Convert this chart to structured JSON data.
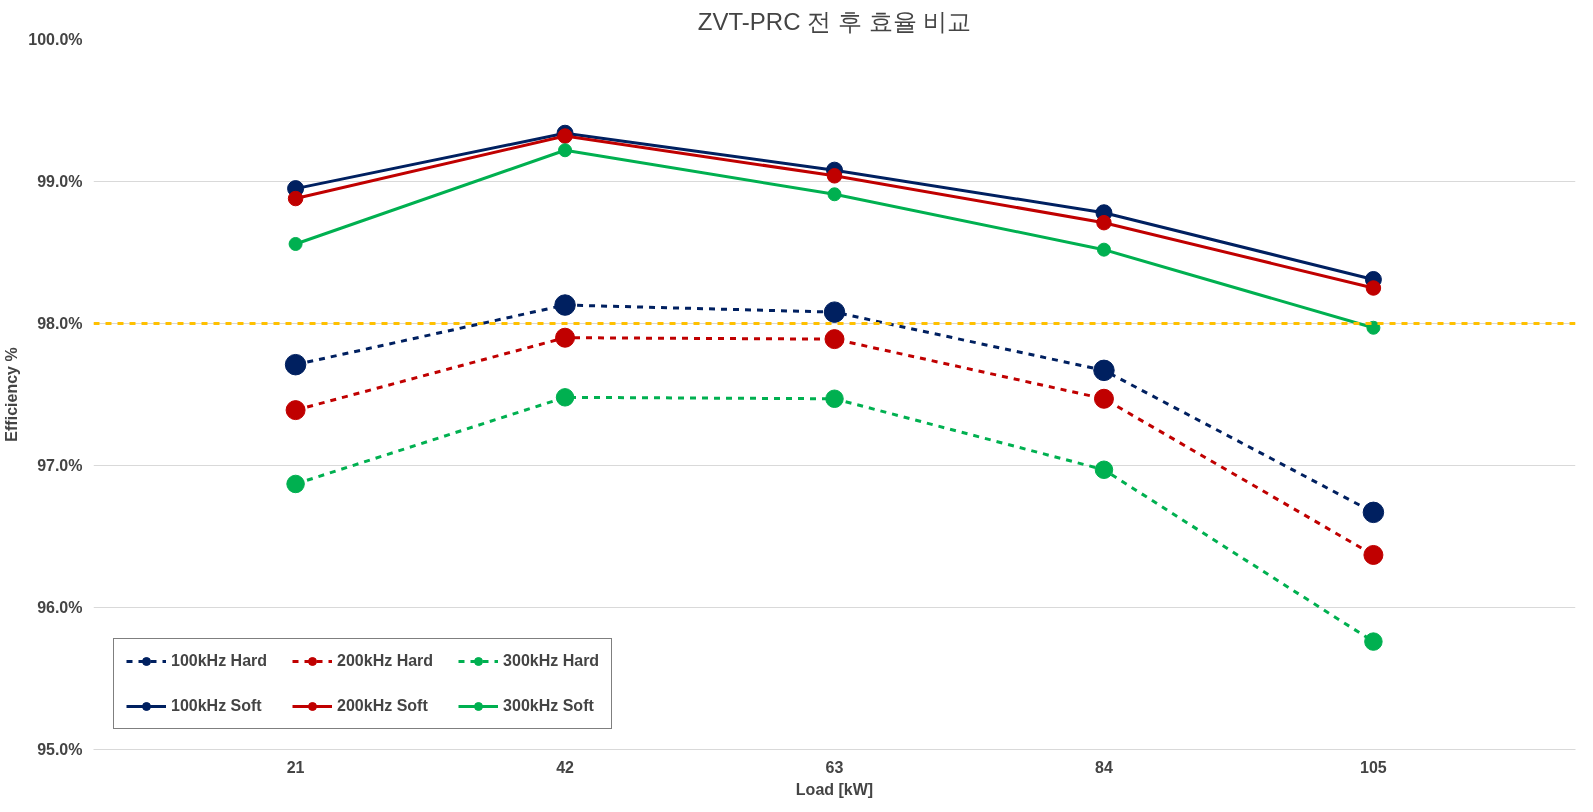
{
  "chart_data": {
    "type": "line",
    "title": "ZVT-PRC 전 후 효율 비교",
    "xlabel": "Load [kW]",
    "ylabel": "Efficiency %",
    "categories": [
      "21",
      "42",
      "63",
      "84",
      "105"
    ],
    "ylim": [
      95,
      100
    ],
    "yticks": [
      {
        "value": 95,
        "label": "95.0%"
      },
      {
        "value": 96,
        "label": "96.0%"
      },
      {
        "value": 97,
        "label": "97.0%"
      },
      {
        "value": 98,
        "label": "98.0%"
      },
      {
        "value": 99,
        "label": "99.0%"
      },
      {
        "value": 100,
        "label": "100.0%"
      }
    ],
    "grid": "y",
    "legend": "bottom left",
    "marker": "circle",
    "ref_lines": [
      {
        "axis": "y",
        "value": 98,
        "label": null,
        "color": "#ffc000",
        "line_style": "dashed"
      }
    ],
    "series": [
      {
        "name": "100kHz Hard",
        "color": "#002060",
        "line_style": "dashed",
        "values": [
          97.71,
          98.13,
          98.08,
          97.67,
          96.67
        ]
      },
      {
        "name": "200kHz Hard",
        "color": "#c00000",
        "line_style": "dashed",
        "values": [
          97.39,
          97.9,
          97.89,
          97.47,
          96.37
        ]
      },
      {
        "name": "300kHz Hard",
        "color": "#00b050",
        "line_style": "dashed",
        "values": [
          96.87,
          97.48,
          97.47,
          96.97,
          95.76
        ]
      },
      {
        "name": "100kHz Soft",
        "color": "#002060",
        "line_style": "solid",
        "values": [
          98.95,
          99.34,
          99.08,
          98.78,
          98.31
        ]
      },
      {
        "name": "200kHz Soft",
        "color": "#c00000",
        "line_style": "solid",
        "values": [
          98.88,
          99.32,
          99.04,
          98.71,
          98.25
        ]
      },
      {
        "name": "300kHz Soft",
        "color": "#00b050",
        "line_style": "solid",
        "values": [
          98.56,
          99.22,
          98.91,
          98.52,
          97.97
        ]
      }
    ]
  }
}
